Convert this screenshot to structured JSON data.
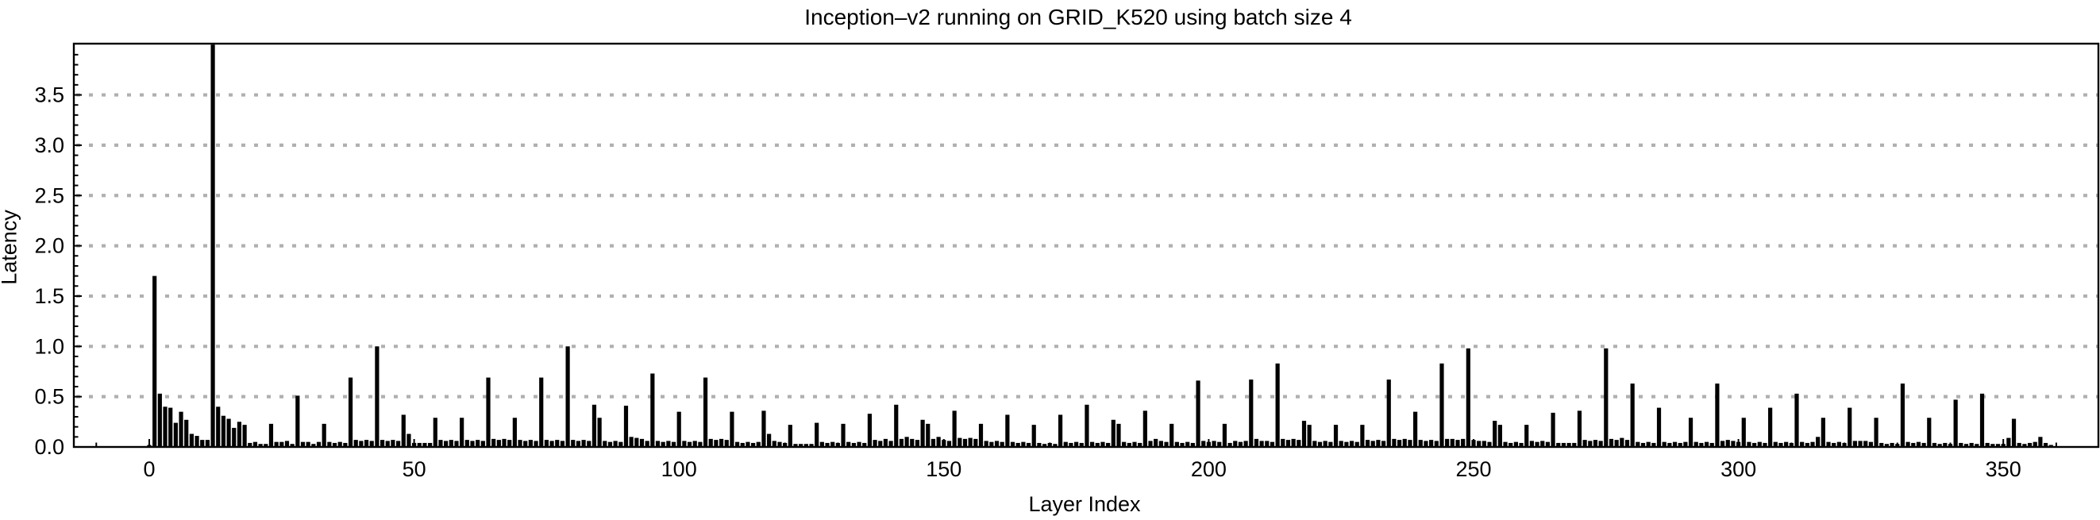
{
  "chart_data": {
    "type": "bar",
    "title": "Inception–v2 running on GRID_K520 using batch size 4",
    "xlabel": "Layer Index",
    "ylabel": "Latency",
    "x_ticks": [
      0,
      50,
      100,
      150,
      200,
      250,
      300,
      350
    ],
    "y_ticks": [
      0.0,
      0.5,
      1.0,
      1.5,
      2.0,
      2.5,
      3.0,
      3.5
    ],
    "y_tick_labels": [
      "0.0",
      "0.5",
      "1.0",
      "1.5",
      "2.0",
      "2.5",
      "3.0",
      "3.5"
    ],
    "xlim": [
      -14,
      367
    ],
    "ylim": [
      0,
      4.0
    ],
    "x_minor_step": 10,
    "y_minor_step": 0.1,
    "grid": "horizontal-dotted",
    "legend": "none",
    "bar_color": "#000000",
    "grid_color": "#b0b0b0",
    "axis_color": "#000000",
    "x_start": 0,
    "values": [
      0.02,
      1.7,
      0.53,
      0.4,
      0.39,
      0.24,
      0.35,
      0.27,
      0.13,
      0.11,
      0.07,
      0.07,
      4.0,
      0.4,
      0.31,
      0.28,
      0.19,
      0.25,
      0.22,
      0.04,
      0.05,
      0.03,
      0.03,
      0.23,
      0.05,
      0.05,
      0.06,
      0.03,
      0.51,
      0.05,
      0.05,
      0.03,
      0.05,
      0.23,
      0.05,
      0.04,
      0.05,
      0.04,
      0.69,
      0.07,
      0.06,
      0.07,
      0.06,
      1.0,
      0.07,
      0.06,
      0.07,
      0.06,
      0.32,
      0.13,
      0.04,
      0.04,
      0.04,
      0.04,
      0.29,
      0.07,
      0.06,
      0.07,
      0.06,
      0.29,
      0.07,
      0.06,
      0.07,
      0.06,
      0.69,
      0.08,
      0.07,
      0.08,
      0.07,
      0.29,
      0.07,
      0.06,
      0.07,
      0.06,
      0.69,
      0.07,
      0.06,
      0.07,
      0.06,
      1.0,
      0.07,
      0.06,
      0.07,
      0.06,
      0.42,
      0.29,
      0.06,
      0.05,
      0.06,
      0.05,
      0.41,
      0.1,
      0.09,
      0.08,
      0.06,
      0.73,
      0.06,
      0.05,
      0.06,
      0.05,
      0.35,
      0.06,
      0.05,
      0.06,
      0.05,
      0.69,
      0.08,
      0.07,
      0.08,
      0.07,
      0.35,
      0.05,
      0.04,
      0.05,
      0.04,
      0.05,
      0.36,
      0.13,
      0.06,
      0.05,
      0.04,
      0.22,
      0.03,
      0.03,
      0.03,
      0.03,
      0.24,
      0.05,
      0.04,
      0.05,
      0.04,
      0.23,
      0.05,
      0.04,
      0.05,
      0.04,
      0.33,
      0.07,
      0.06,
      0.08,
      0.06,
      0.42,
      0.08,
      0.1,
      0.08,
      0.07,
      0.27,
      0.23,
      0.08,
      0.1,
      0.07,
      0.06,
      0.36,
      0.09,
      0.08,
      0.09,
      0.08,
      0.23,
      0.06,
      0.05,
      0.06,
      0.05,
      0.32,
      0.05,
      0.04,
      0.05,
      0.04,
      0.22,
      0.04,
      0.03,
      0.04,
      0.03,
      0.32,
      0.05,
      0.04,
      0.05,
      0.04,
      0.42,
      0.05,
      0.04,
      0.05,
      0.04,
      0.27,
      0.23,
      0.05,
      0.04,
      0.05,
      0.04,
      0.36,
      0.06,
      0.08,
      0.06,
      0.05,
      0.23,
      0.05,
      0.04,
      0.05,
      0.04,
      0.66,
      0.06,
      0.05,
      0.06,
      0.05,
      0.23,
      0.04,
      0.06,
      0.05,
      0.06,
      0.67,
      0.08,
      0.06,
      0.06,
      0.05,
      0.83,
      0.08,
      0.07,
      0.08,
      0.07,
      0.26,
      0.22,
      0.06,
      0.05,
      0.06,
      0.05,
      0.22,
      0.06,
      0.05,
      0.06,
      0.05,
      0.22,
      0.07,
      0.06,
      0.07,
      0.06,
      0.67,
      0.08,
      0.07,
      0.08,
      0.07,
      0.35,
      0.07,
      0.06,
      0.07,
      0.06,
      0.83,
      0.08,
      0.08,
      0.07,
      0.08,
      0.98,
      0.07,
      0.06,
      0.06,
      0.05,
      0.26,
      0.22,
      0.05,
      0.04,
      0.05,
      0.04,
      0.22,
      0.06,
      0.05,
      0.06,
      0.05,
      0.34,
      0.04,
      0.04,
      0.04,
      0.04,
      0.36,
      0.07,
      0.06,
      0.07,
      0.06,
      0.98,
      0.08,
      0.07,
      0.09,
      0.07,
      0.63,
      0.05,
      0.04,
      0.05,
      0.04,
      0.39,
      0.05,
      0.04,
      0.05,
      0.04,
      0.05,
      0.29,
      0.05,
      0.04,
      0.05,
      0.04,
      0.63,
      0.06,
      0.07,
      0.06,
      0.05,
      0.29,
      0.05,
      0.04,
      0.05,
      0.04,
      0.39,
      0.05,
      0.04,
      0.05,
      0.04,
      0.53,
      0.05,
      0.04,
      0.05,
      0.1,
      0.29,
      0.05,
      0.04,
      0.05,
      0.04,
      0.39,
      0.06,
      0.06,
      0.06,
      0.05,
      0.29,
      0.04,
      0.03,
      0.04,
      0.03,
      0.63,
      0.05,
      0.04,
      0.05,
      0.04,
      0.29,
      0.04,
      0.03,
      0.04,
      0.03,
      0.47,
      0.04,
      0.03,
      0.04,
      0.03,
      0.53,
      0.04,
      0.03,
      0.03,
      0.03,
      0.09,
      0.28,
      0.04,
      0.03,
      0.04,
      0.05,
      0.1,
      0.04,
      0.02
    ]
  }
}
